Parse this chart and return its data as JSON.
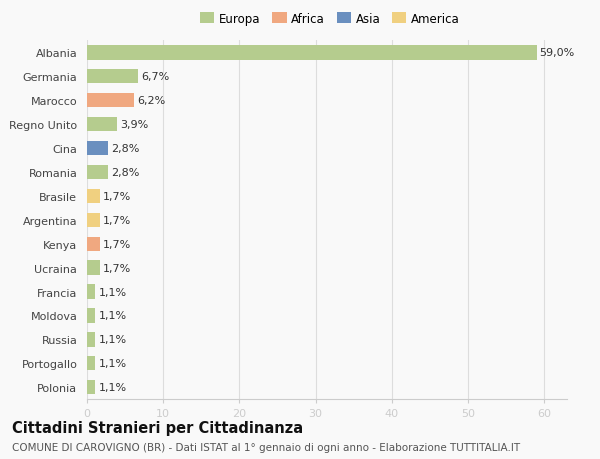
{
  "countries": [
    "Polonia",
    "Portogallo",
    "Russia",
    "Moldova",
    "Francia",
    "Ucraina",
    "Kenya",
    "Argentina",
    "Brasile",
    "Romania",
    "Cina",
    "Regno Unito",
    "Marocco",
    "Germania",
    "Albania"
  ],
  "values": [
    1.1,
    1.1,
    1.1,
    1.1,
    1.1,
    1.7,
    1.7,
    1.7,
    1.7,
    2.8,
    2.8,
    3.9,
    6.2,
    6.7,
    59.0
  ],
  "labels": [
    "1,1%",
    "1,1%",
    "1,1%",
    "1,1%",
    "1,1%",
    "1,7%",
    "1,7%",
    "1,7%",
    "1,7%",
    "2,8%",
    "2,8%",
    "3,9%",
    "6,2%",
    "6,7%",
    "59,0%"
  ],
  "continents": [
    "Europa",
    "Europa",
    "Europa",
    "Europa",
    "Europa",
    "Europa",
    "Africa",
    "America",
    "America",
    "Europa",
    "Asia",
    "Europa",
    "Africa",
    "Europa",
    "Europa"
  ],
  "colors": {
    "Europa": "#b5cc8e",
    "Africa": "#f0a880",
    "Asia": "#6a8fbf",
    "America": "#f0d080"
  },
  "legend_order": [
    "Europa",
    "Africa",
    "Asia",
    "America"
  ],
  "title": "Cittadini Stranieri per Cittadinanza",
  "subtitle": "COMUNE DI CAROVIGNO (BR) - Dati ISTAT al 1° gennaio di ogni anno - Elaborazione TUTTITALIA.IT",
  "xlim": [
    0,
    63
  ],
  "xticks": [
    0,
    10,
    20,
    30,
    40,
    50,
    60
  ],
  "background_color": "#f9f9f9",
  "bar_height": 0.6,
  "label_fontsize": 8,
  "tick_fontsize": 8,
  "title_fontsize": 10.5,
  "subtitle_fontsize": 7.5
}
